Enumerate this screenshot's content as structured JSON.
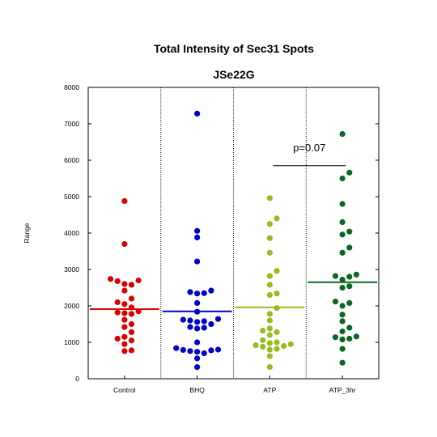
{
  "chart_data": {
    "type": "scatter",
    "title": "Total Intensity of Sec31 Spots",
    "subtitle": "JSe22G",
    "xlabel": "",
    "ylabel": "Range",
    "ylim": [
      0,
      8000
    ],
    "yticks": [
      0,
      1000,
      2000,
      3000,
      4000,
      5000,
      6000,
      7000,
      8000
    ],
    "grid": false,
    "categories": [
      "Control",
      "BHQ",
      "ATP",
      "ATP_3hr"
    ],
    "series": [
      {
        "category": "Control",
        "color": "#dd0000",
        "mean": 1910,
        "values": [
          4880,
          3700,
          2740,
          2700,
          2680,
          2600,
          2580,
          2420,
          2200,
          2100,
          2050,
          1960,
          1850,
          1820,
          1800,
          1780,
          1620,
          1500,
          1420,
          1280,
          1150,
          1100,
          1050,
          950,
          780,
          760
        ]
      },
      {
        "category": "BHQ",
        "color": "#0000cc",
        "mean": 1850,
        "values": [
          7280,
          4060,
          3880,
          3220,
          2420,
          2380,
          2350,
          2340,
          2080,
          1840,
          1640,
          1620,
          1600,
          1580,
          1560,
          1500,
          1420,
          1400,
          1380,
          1000,
          840,
          800,
          790,
          780,
          760,
          740,
          700,
          560,
          320
        ]
      },
      {
        "category": "ATP",
        "color": "#99bb22",
        "mean": 1960,
        "values": [
          4960,
          4400,
          4250,
          3860,
          3460,
          2960,
          2820,
          2580,
          2340,
          2300,
          1940,
          1780,
          1600,
          1380,
          1320,
          1280,
          1200,
          1060,
          1000,
          980,
          950,
          920,
          900,
          880,
          820,
          800,
          620,
          320
        ]
      },
      {
        "category": "ATP_3hr",
        "color": "#0b6624",
        "mean": 2650,
        "values": [
          6720,
          5660,
          5500,
          4800,
          4300,
          4040,
          3960,
          3600,
          3460,
          2860,
          2820,
          2800,
          2720,
          2540,
          2500,
          2120,
          2080,
          2000,
          1760,
          1580,
          1400,
          1300,
          1160,
          1140,
          1100,
          1080,
          820,
          440
        ]
      }
    ],
    "annotations": [
      {
        "text": "p=0.07",
        "from": "ATP",
        "to": "ATP_3hr",
        "y": 5850
      }
    ]
  }
}
